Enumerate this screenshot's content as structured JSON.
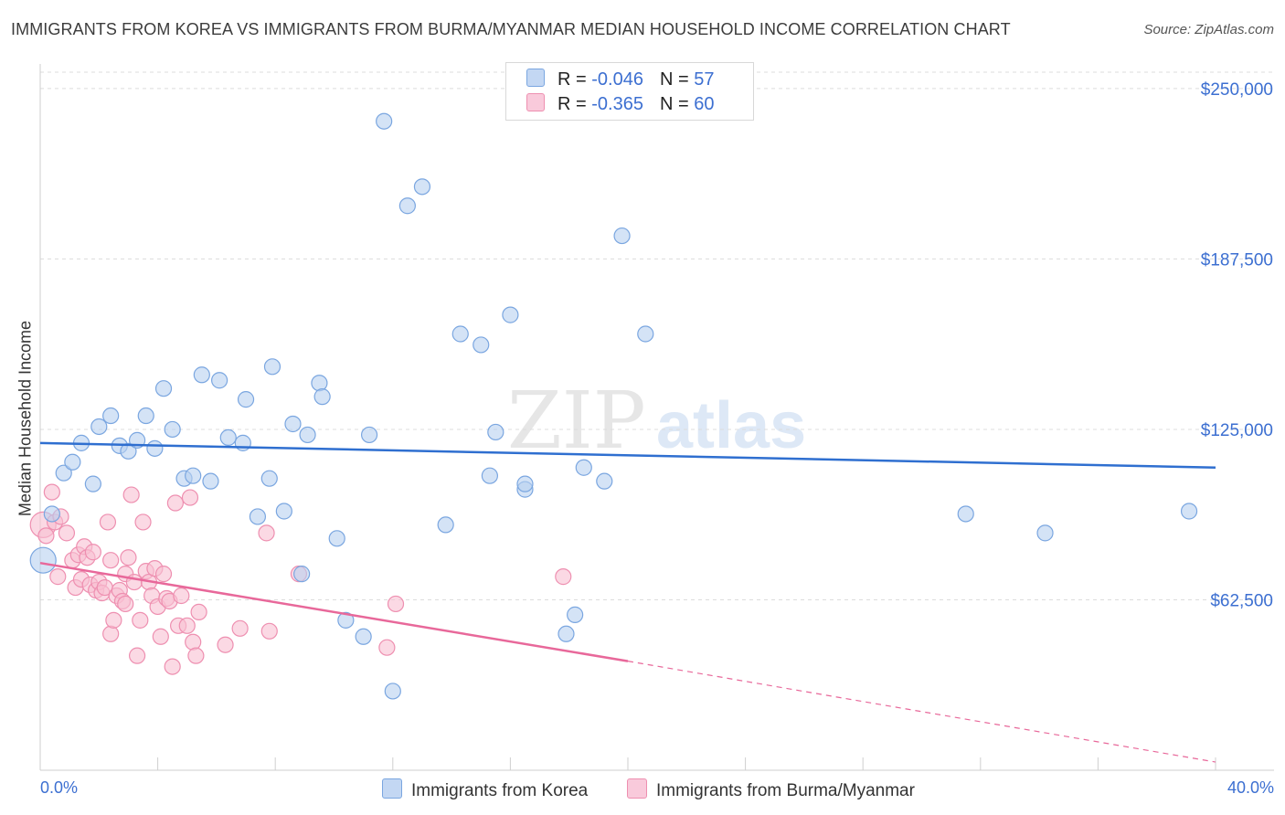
{
  "title": "IMMIGRANTS FROM KOREA VS IMMIGRANTS FROM BURMA/MYANMAR MEDIAN HOUSEHOLD INCOME CORRELATION CHART",
  "source": "Source: ZipAtlas.com",
  "watermark": {
    "zip": "ZIP",
    "atlas": "atlas"
  },
  "legend": {
    "korea": {
      "r_label": "R = ",
      "r_value": "-0.046",
      "n_label": "N = ",
      "n_value": "57"
    },
    "burma": {
      "r_label": "R = ",
      "r_value": "-0.365",
      "n_label": "N = ",
      "n_value": "60"
    }
  },
  "colors": {
    "korea_fill": "#b8d0f0",
    "korea_stroke": "#7aa6e0",
    "korea_line": "#2f6fd0",
    "burma_fill": "#f8bfd2",
    "burma_stroke": "#ee8fb0",
    "burma_line": "#e8689a",
    "tick_label": "#3c6fd1",
    "grid": "#dcdcdc"
  },
  "chart_data": {
    "type": "scatter",
    "title": "IMMIGRANTS FROM KOREA VS IMMIGRANTS FROM BURMA/MYANMAR MEDIAN HOUSEHOLD INCOME CORRELATION CHART",
    "xlabel": "",
    "ylabel": "Median Household Income",
    "xlim": [
      0,
      40
    ],
    "ylim": [
      0,
      256000
    ],
    "x_tick_labels": [
      "0.0%",
      "40.0%"
    ],
    "y_ticks": [
      62500,
      125000,
      187500,
      250000
    ],
    "y_tick_labels": [
      "$62,500",
      "$125,000",
      "$187,500",
      "$250,000"
    ],
    "grid": true,
    "legend_position": "top-center",
    "series": [
      {
        "name": "Immigrants from Korea",
        "trend": {
          "x": [
            0,
            40
          ],
          "y": [
            120000,
            111000
          ],
          "dashed_from": null
        },
        "points": [
          [
            0.1,
            77000
          ],
          [
            0.4,
            94000
          ],
          [
            0.8,
            109000
          ],
          [
            1.1,
            113000
          ],
          [
            1.4,
            120000
          ],
          [
            1.8,
            105000
          ],
          [
            2.0,
            126000
          ],
          [
            2.4,
            130000
          ],
          [
            2.7,
            119000
          ],
          [
            3.0,
            117000
          ],
          [
            3.3,
            121000
          ],
          [
            3.6,
            130000
          ],
          [
            3.9,
            118000
          ],
          [
            4.2,
            140000
          ],
          [
            4.5,
            125000
          ],
          [
            4.9,
            107000
          ],
          [
            5.2,
            108000
          ],
          [
            5.5,
            145000
          ],
          [
            5.8,
            106000
          ],
          [
            6.1,
            143000
          ],
          [
            6.4,
            122000
          ],
          [
            6.9,
            120000
          ],
          [
            7.0,
            136000
          ],
          [
            7.4,
            93000
          ],
          [
            7.8,
            107000
          ],
          [
            7.9,
            148000
          ],
          [
            8.3,
            95000
          ],
          [
            8.6,
            127000
          ],
          [
            8.9,
            72000
          ],
          [
            9.1,
            123000
          ],
          [
            9.5,
            142000
          ],
          [
            9.6,
            137000
          ],
          [
            10.1,
            85000
          ],
          [
            10.4,
            55000
          ],
          [
            11.0,
            49000
          ],
          [
            11.2,
            123000
          ],
          [
            11.7,
            238000
          ],
          [
            12.0,
            29000
          ],
          [
            12.5,
            207000
          ],
          [
            13.0,
            214000
          ],
          [
            13.8,
            90000
          ],
          [
            14.3,
            160000
          ],
          [
            15.0,
            156000
          ],
          [
            15.3,
            108000
          ],
          [
            15.5,
            124000
          ],
          [
            16.0,
            167000
          ],
          [
            16.5,
            103000
          ],
          [
            16.5,
            105000
          ],
          [
            17.9,
            50000
          ],
          [
            18.2,
            57000
          ],
          [
            18.5,
            111000
          ],
          [
            19.2,
            106000
          ],
          [
            19.8,
            196000
          ],
          [
            20.6,
            160000
          ],
          [
            31.5,
            94000
          ],
          [
            34.2,
            87000
          ],
          [
            39.1,
            95000
          ]
        ]
      },
      {
        "name": "Immigrants from Burma/Myanmar",
        "trend": {
          "x": [
            0,
            20,
            40
          ],
          "y": [
            76000,
            40000,
            3000
          ],
          "dashed_from": 20
        },
        "points": [
          [
            0.1,
            90000
          ],
          [
            0.2,
            86000
          ],
          [
            0.4,
            102000
          ],
          [
            0.5,
            91000
          ],
          [
            0.6,
            71000
          ],
          [
            0.7,
            93000
          ],
          [
            0.9,
            87000
          ],
          [
            1.1,
            77000
          ],
          [
            1.2,
            67000
          ],
          [
            1.3,
            79000
          ],
          [
            1.4,
            70000
          ],
          [
            1.5,
            82000
          ],
          [
            1.6,
            78000
          ],
          [
            1.7,
            68000
          ],
          [
            1.8,
            80000
          ],
          [
            1.9,
            66000
          ],
          [
            2.0,
            69000
          ],
          [
            2.1,
            65000
          ],
          [
            2.2,
            67000
          ],
          [
            2.3,
            91000
          ],
          [
            2.4,
            50000
          ],
          [
            2.4,
            77000
          ],
          [
            2.5,
            55000
          ],
          [
            2.6,
            64000
          ],
          [
            2.7,
            66000
          ],
          [
            2.8,
            62000
          ],
          [
            2.9,
            61000
          ],
          [
            2.9,
            72000
          ],
          [
            3.0,
            78000
          ],
          [
            3.1,
            101000
          ],
          [
            3.2,
            69000
          ],
          [
            3.3,
            42000
          ],
          [
            3.4,
            55000
          ],
          [
            3.5,
            91000
          ],
          [
            3.6,
            73000
          ],
          [
            3.7,
            69000
          ],
          [
            3.8,
            64000
          ],
          [
            3.9,
            74000
          ],
          [
            4.0,
            60000
          ],
          [
            4.1,
            49000
          ],
          [
            4.2,
            72000
          ],
          [
            4.3,
            63000
          ],
          [
            4.4,
            62000
          ],
          [
            4.5,
            38000
          ],
          [
            4.6,
            98000
          ],
          [
            4.7,
            53000
          ],
          [
            4.8,
            64000
          ],
          [
            5.0,
            53000
          ],
          [
            5.1,
            100000
          ],
          [
            5.2,
            47000
          ],
          [
            5.3,
            42000
          ],
          [
            5.4,
            58000
          ],
          [
            6.3,
            46000
          ],
          [
            6.8,
            52000
          ],
          [
            7.7,
            87000
          ],
          [
            7.8,
            51000
          ],
          [
            8.8,
            72000
          ],
          [
            11.8,
            45000
          ],
          [
            12.1,
            61000
          ],
          [
            17.8,
            71000
          ]
        ]
      }
    ]
  },
  "bottom_legend": {
    "korea": "Immigrants from Korea",
    "burma": "Immigrants from Burma/Myanmar"
  }
}
